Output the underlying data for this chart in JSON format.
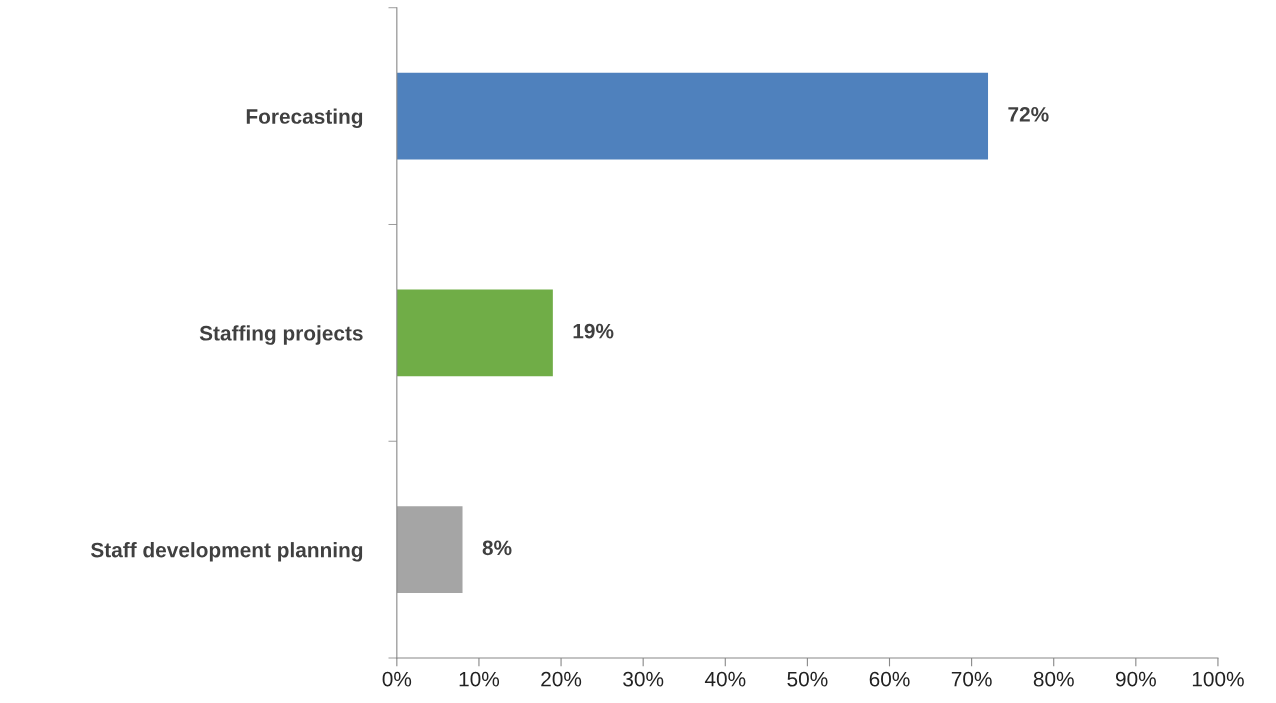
{
  "chart_data": {
    "type": "bar",
    "orientation": "horizontal",
    "categories": [
      "Forecasting",
      "Staffing projects",
      "Staff development planning"
    ],
    "values": [
      72,
      19,
      8
    ],
    "colors": [
      "#4f81bd",
      "#70ad47",
      "#a5a5a5"
    ],
    "value_labels": [
      "72%",
      "19%",
      "8%"
    ],
    "xlim": [
      0,
      100
    ],
    "xticks": [
      {
        "value": 0,
        "label": "0%"
      },
      {
        "value": 10,
        "label": "10%"
      },
      {
        "value": 20,
        "label": "20%"
      },
      {
        "value": 30,
        "label": "30%"
      },
      {
        "value": 40,
        "label": "40%"
      },
      {
        "value": 50,
        "label": "50%"
      },
      {
        "value": 60,
        "label": "60%"
      },
      {
        "value": 70,
        "label": "70%"
      },
      {
        "value": 80,
        "label": "80%"
      },
      {
        "value": 90,
        "label": "90%"
      },
      {
        "value": 100,
        "label": "100%"
      }
    ],
    "grid": false,
    "legend": false
  }
}
